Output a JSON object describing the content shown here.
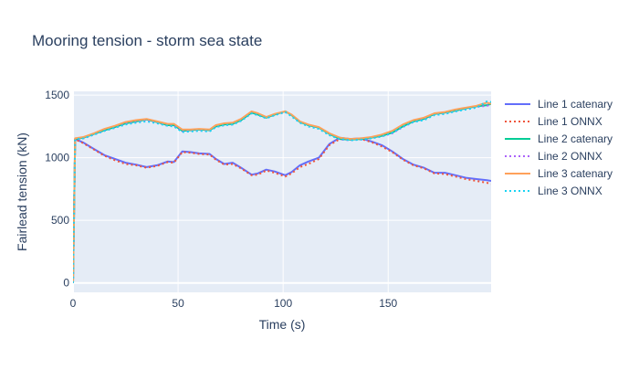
{
  "chart_data": {
    "type": "line",
    "title": "Mooring tension - storm sea state",
    "xlabel": "Time (s)",
    "ylabel": "Fairlead tension (kN)",
    "xlim": [
      0,
      199
    ],
    "ylim": [
      -75,
      1530
    ],
    "xticks": [
      0,
      50,
      100,
      150
    ],
    "yticks": [
      0,
      500,
      1000,
      1500
    ],
    "grid": true,
    "legend_position": "right",
    "colors": {
      "background": "#e5ecf6",
      "grid": "#ffffff",
      "text": "#2a3f5f",
      "line1": "#636efa",
      "line1_onnx": "#ef553b",
      "line2": "#00cc96",
      "line2_onnx": "#ab63fa",
      "line3": "#ffa15a",
      "line3_onnx": "#19d3f3"
    },
    "x": [
      0,
      1,
      5,
      10,
      15,
      20,
      25,
      30,
      35,
      40,
      45,
      48,
      52,
      56,
      60,
      65,
      68,
      72,
      76,
      80,
      85,
      88,
      92,
      96,
      101,
      104,
      108,
      112,
      117,
      122,
      127,
      132,
      137,
      142,
      147,
      152,
      157,
      162,
      167,
      172,
      177,
      182,
      187,
      192,
      197,
      199
    ],
    "series": [
      {
        "name": "Line 1 catenary",
        "style": "solid",
        "color": "#636efa",
        "values": [
          0,
          1150,
          1120,
          1070,
          1020,
          990,
          960,
          945,
          925,
          940,
          970,
          965,
          1050,
          1045,
          1035,
          1030,
          990,
          950,
          960,
          920,
          865,
          875,
          905,
          890,
          860,
          885,
          940,
          970,
          1000,
          1110,
          1160,
          1150,
          1155,
          1130,
          1100,
          1050,
          990,
          945,
          920,
          880,
          880,
          860,
          840,
          830,
          820,
          815
        ]
      },
      {
        "name": "Line 1 ONNX",
        "style": "dot",
        "color": "#ef553b",
        "values": [
          0,
          1148,
          1115,
          1065,
          1015,
          980,
          950,
          940,
          920,
          935,
          965,
          960,
          1045,
          1040,
          1030,
          1025,
          985,
          945,
          950,
          915,
          860,
          865,
          898,
          880,
          850,
          875,
          925,
          950,
          990,
          1100,
          1150,
          1145,
          1150,
          1125,
          1090,
          1045,
          985,
          940,
          915,
          875,
          870,
          850,
          830,
          815,
          800,
          790
        ]
      },
      {
        "name": "Line 2 catenary",
        "style": "solid",
        "color": "#00cc96",
        "values": [
          0,
          1150,
          1160,
          1190,
          1220,
          1245,
          1275,
          1290,
          1305,
          1285,
          1260,
          1260,
          1215,
          1220,
          1225,
          1220,
          1250,
          1265,
          1270,
          1300,
          1360,
          1345,
          1320,
          1345,
          1370,
          1340,
          1285,
          1260,
          1240,
          1190,
          1150,
          1145,
          1150,
          1160,
          1175,
          1200,
          1250,
          1290,
          1310,
          1350,
          1360,
          1375,
          1395,
          1410,
          1420,
          1430
        ]
      },
      {
        "name": "Line 2 ONNX",
        "style": "dot",
        "color": "#ab63fa",
        "values": [
          0,
          1145,
          1155,
          1185,
          1215,
          1240,
          1270,
          1285,
          1300,
          1280,
          1255,
          1255,
          1210,
          1215,
          1220,
          1215,
          1245,
          1260,
          1265,
          1295,
          1355,
          1340,
          1315,
          1340,
          1365,
          1335,
          1280,
          1255,
          1235,
          1185,
          1145,
          1140,
          1145,
          1155,
          1170,
          1195,
          1245,
          1285,
          1305,
          1345,
          1355,
          1370,
          1390,
          1405,
          1415,
          1425
        ]
      },
      {
        "name": "Line 3 catenary",
        "style": "solid",
        "color": "#ffa15a",
        "values": [
          0,
          1155,
          1165,
          1195,
          1230,
          1255,
          1285,
          1300,
          1310,
          1290,
          1270,
          1270,
          1225,
          1225,
          1230,
          1225,
          1260,
          1275,
          1280,
          1310,
          1370,
          1355,
          1325,
          1350,
          1370,
          1345,
          1290,
          1265,
          1245,
          1195,
          1160,
          1150,
          1155,
          1165,
          1185,
          1215,
          1265,
          1300,
          1320,
          1355,
          1365,
          1385,
          1400,
          1415,
          1440,
          1430
        ]
      },
      {
        "name": "Line 3 ONNX",
        "style": "dot",
        "color": "#19d3f3",
        "values": [
          0,
          1148,
          1155,
          1185,
          1215,
          1240,
          1265,
          1280,
          1290,
          1275,
          1255,
          1250,
          1205,
          1210,
          1215,
          1210,
          1245,
          1260,
          1265,
          1295,
          1355,
          1340,
          1315,
          1340,
          1365,
          1330,
          1280,
          1250,
          1230,
          1180,
          1150,
          1140,
          1145,
          1155,
          1170,
          1200,
          1250,
          1285,
          1300,
          1340,
          1350,
          1370,
          1385,
          1400,
          1450,
          1445
        ]
      }
    ]
  }
}
